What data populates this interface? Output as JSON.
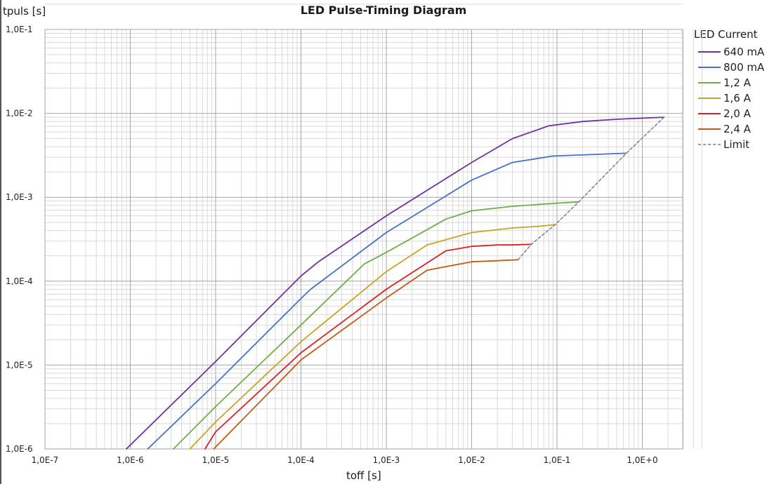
{
  "chart_data": {
    "type": "line",
    "title": "LED Pulse-Timing Diagram",
    "xlabel": "toff [s]",
    "ylabel": "tpuls [s]",
    "xscale": "log",
    "yscale": "log",
    "xlim": [
      1e-07,
      5.0
    ],
    "ylim": [
      1e-06,
      0.1
    ],
    "x_ticks": [
      "1,0E-7",
      "1,0E-6",
      "1,0E-5",
      "1,0E-4",
      "1,0E-3",
      "1,0E-2",
      "1,0E-1",
      "1,0E+0"
    ],
    "y_ticks": [
      "1,0E-6",
      "1,0E-5",
      "1,0E-4",
      "1,0E-3",
      "1,0E-2",
      "1,0E-1"
    ],
    "grid": true,
    "legend_title": "LED Current",
    "legend_position": "right",
    "series": [
      {
        "name": "640 mA",
        "color": "#7030a0",
        "dash": false,
        "x": [
          9e-07,
          1e-05,
          0.0001,
          0.00016,
          0.001,
          0.01,
          0.03,
          0.08,
          0.2,
          0.5,
          1.8
        ],
        "y": [
          1e-06,
          1.1e-05,
          0.000115,
          0.00017,
          0.0006,
          0.0026,
          0.005,
          0.0071,
          0.008,
          0.0085,
          0.009
        ]
      },
      {
        "name": "800 mA",
        "color": "#4472c4",
        "dash": false,
        "x": [
          1.6e-06,
          1e-05,
          0.0001,
          0.00013,
          0.001,
          0.01,
          0.03,
          0.09,
          0.3,
          0.65
        ],
        "y": [
          1e-06,
          6e-06,
          6.2e-05,
          8e-05,
          0.00038,
          0.0016,
          0.0026,
          0.0031,
          0.00325,
          0.00335
        ]
      },
      {
        "name": "1,2 A",
        "color": "#70ad47",
        "dash": false,
        "x": [
          3.2e-06,
          1e-05,
          0.0001,
          0.00055,
          0.001,
          0.005,
          0.01,
          0.03,
          0.1,
          0.18
        ],
        "y": [
          1e-06,
          3.2e-06,
          3e-05,
          0.00016,
          0.00022,
          0.00055,
          0.00069,
          0.00078,
          0.00085,
          0.00088
        ]
      },
      {
        "name": "1,6 A",
        "color": "#c9a227",
        "dash": false,
        "x": [
          5e-06,
          1e-05,
          0.0001,
          0.001,
          0.003,
          0.01,
          0.03,
          0.06,
          0.095
        ],
        "y": [
          1e-06,
          2.1e-06,
          1.9e-05,
          0.00013,
          0.00027,
          0.00038,
          0.00043,
          0.00045,
          0.00047
        ]
      },
      {
        "name": "2,0 A",
        "color": "#e02020",
        "dash": false,
        "x": [
          7.5e-06,
          1e-05,
          0.0001,
          0.001,
          0.005,
          0.01,
          0.02,
          0.03,
          0.05
        ],
        "y": [
          1e-06,
          1.6e-06,
          1.4e-05,
          8e-05,
          0.00023,
          0.00026,
          0.00027,
          0.00027,
          0.000275
        ]
      },
      {
        "name": "2,4 A",
        "color": "#c55a11",
        "dash": false,
        "x": [
          9.5e-06,
          0.0001,
          0.001,
          0.003,
          0.01,
          0.02,
          0.035
        ],
        "y": [
          1e-06,
          1.15e-05,
          6.3e-05,
          0.000135,
          0.00017,
          0.000175,
          0.00018
        ]
      },
      {
        "name": "Limit",
        "color": "#808080",
        "dash": true,
        "x": [
          0.035,
          0.05,
          0.095,
          0.18,
          0.65,
          1.8
        ],
        "y": [
          0.00018,
          0.000275,
          0.00047,
          0.00088,
          0.00335,
          0.009
        ]
      }
    ]
  }
}
